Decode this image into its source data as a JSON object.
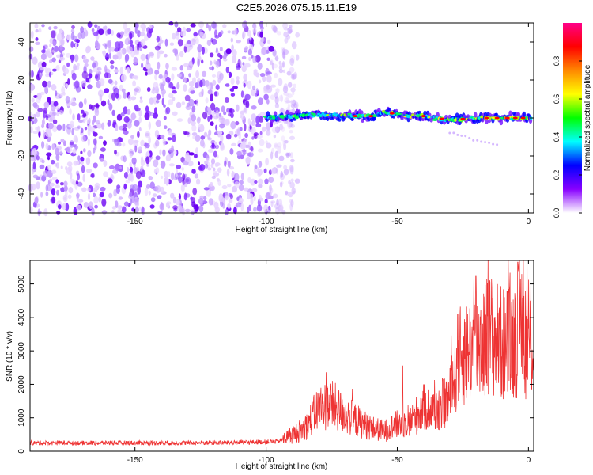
{
  "title": "C2E5.2026.075.15.11.E19",
  "chart_data": [
    {
      "type": "heatmap",
      "xlabel": "Height of straight line (km)",
      "ylabel": "Frequency (Hz)",
      "xlim": [
        -190,
        2
      ],
      "ylim": [
        -50,
        50
      ],
      "xticks": [
        -150,
        -100,
        -50,
        0
      ],
      "yticks": [
        -40,
        -20,
        0,
        20,
        40
      ],
      "noise_region_x": [
        -190,
        -88
      ],
      "signal_trace": {
        "x": [
          -100,
          -90,
          -80,
          -70,
          -60,
          -55,
          -50,
          -40,
          -30,
          -20,
          -10,
          0
        ],
        "freq": [
          0,
          1,
          2,
          1,
          1,
          3,
          2,
          1,
          -1,
          0,
          0,
          0
        ]
      },
      "colorbar": {
        "label": "Normalized spectral amplitude",
        "range": [
          0,
          1
        ],
        "ticks": [
          "0.0",
          "0.2",
          "0.4",
          "0.6",
          "0.8"
        ],
        "colors": [
          "#ffffff",
          "#8800ff",
          "#0000ff",
          "#00ffff",
          "#00ff00",
          "#ffff00",
          "#ff8800",
          "#ff0000",
          "#ff0088"
        ]
      }
    },
    {
      "type": "line",
      "xlabel": "Height of straight line (km)",
      "ylabel": "SNR (10 * v/v)",
      "xlim": [
        -190,
        2
      ],
      "ylim": [
        0,
        5700
      ],
      "xticks": [
        -150,
        -100,
        -50,
        0
      ],
      "yticks": [
        0,
        1000,
        2000,
        3000,
        4000,
        5000
      ],
      "color": "#ee3333",
      "series": [
        {
          "x": [
            -190,
            -170,
            -150,
            -130,
            -110,
            -100,
            -95,
            -90,
            -85,
            -80,
            -75,
            -70,
            -65,
            -60,
            -55,
            -50,
            -45,
            -40,
            -35,
            -30,
            -27,
            -25,
            -22,
            -20,
            -15,
            -10,
            -5,
            -3,
            0,
            2
          ],
          "y": [
            250,
            250,
            250,
            250,
            260,
            280,
            300,
            500,
            700,
            1300,
            1400,
            1100,
            900,
            700,
            600,
            800,
            900,
            1300,
            1200,
            1600,
            2700,
            2900,
            3000,
            3200,
            3500,
            3200,
            3300,
            3900,
            3100,
            3400
          ]
        }
      ],
      "peaks": [
        {
          "x": -77,
          "y": 2350
        },
        {
          "x": -48,
          "y": 2550
        },
        {
          "x": -27,
          "y": 4100
        },
        {
          "x": -20,
          "y": 5250
        },
        {
          "x": -4,
          "y": 5650
        }
      ]
    }
  ]
}
